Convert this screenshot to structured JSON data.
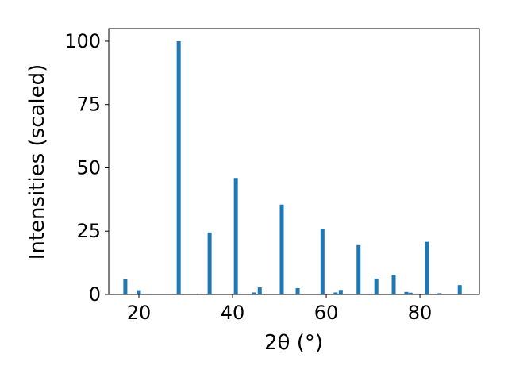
{
  "chart_data": {
    "type": "bar",
    "xlabel": "2θ (°)",
    "ylabel": "Intensities (scaled)",
    "x": [
      17.1,
      20.0,
      28.5,
      33.6,
      35.1,
      40.7,
      44.6,
      45.8,
      50.5,
      53.9,
      59.2,
      62.0,
      63.1,
      66.9,
      70.7,
      74.4,
      77.1,
      78.0,
      81.5,
      84.2,
      88.5
    ],
    "values": [
      6,
      1.7,
      100,
      0.3,
      24.5,
      46,
      0.8,
      2.8,
      35.5,
      2.5,
      26,
      0.8,
      1.8,
      19.5,
      6.3,
      7.8,
      1.0,
      0.7,
      20.8,
      0.5,
      3.7
    ],
    "color": "#1f77b4",
    "xlim": [
      13.56,
      92.7
    ],
    "xticks": [
      20,
      40,
      60,
      80
    ],
    "ylim": [
      0,
      105
    ],
    "yticks": [
      0,
      25,
      50,
      75,
      100
    ],
    "grid": false
  }
}
